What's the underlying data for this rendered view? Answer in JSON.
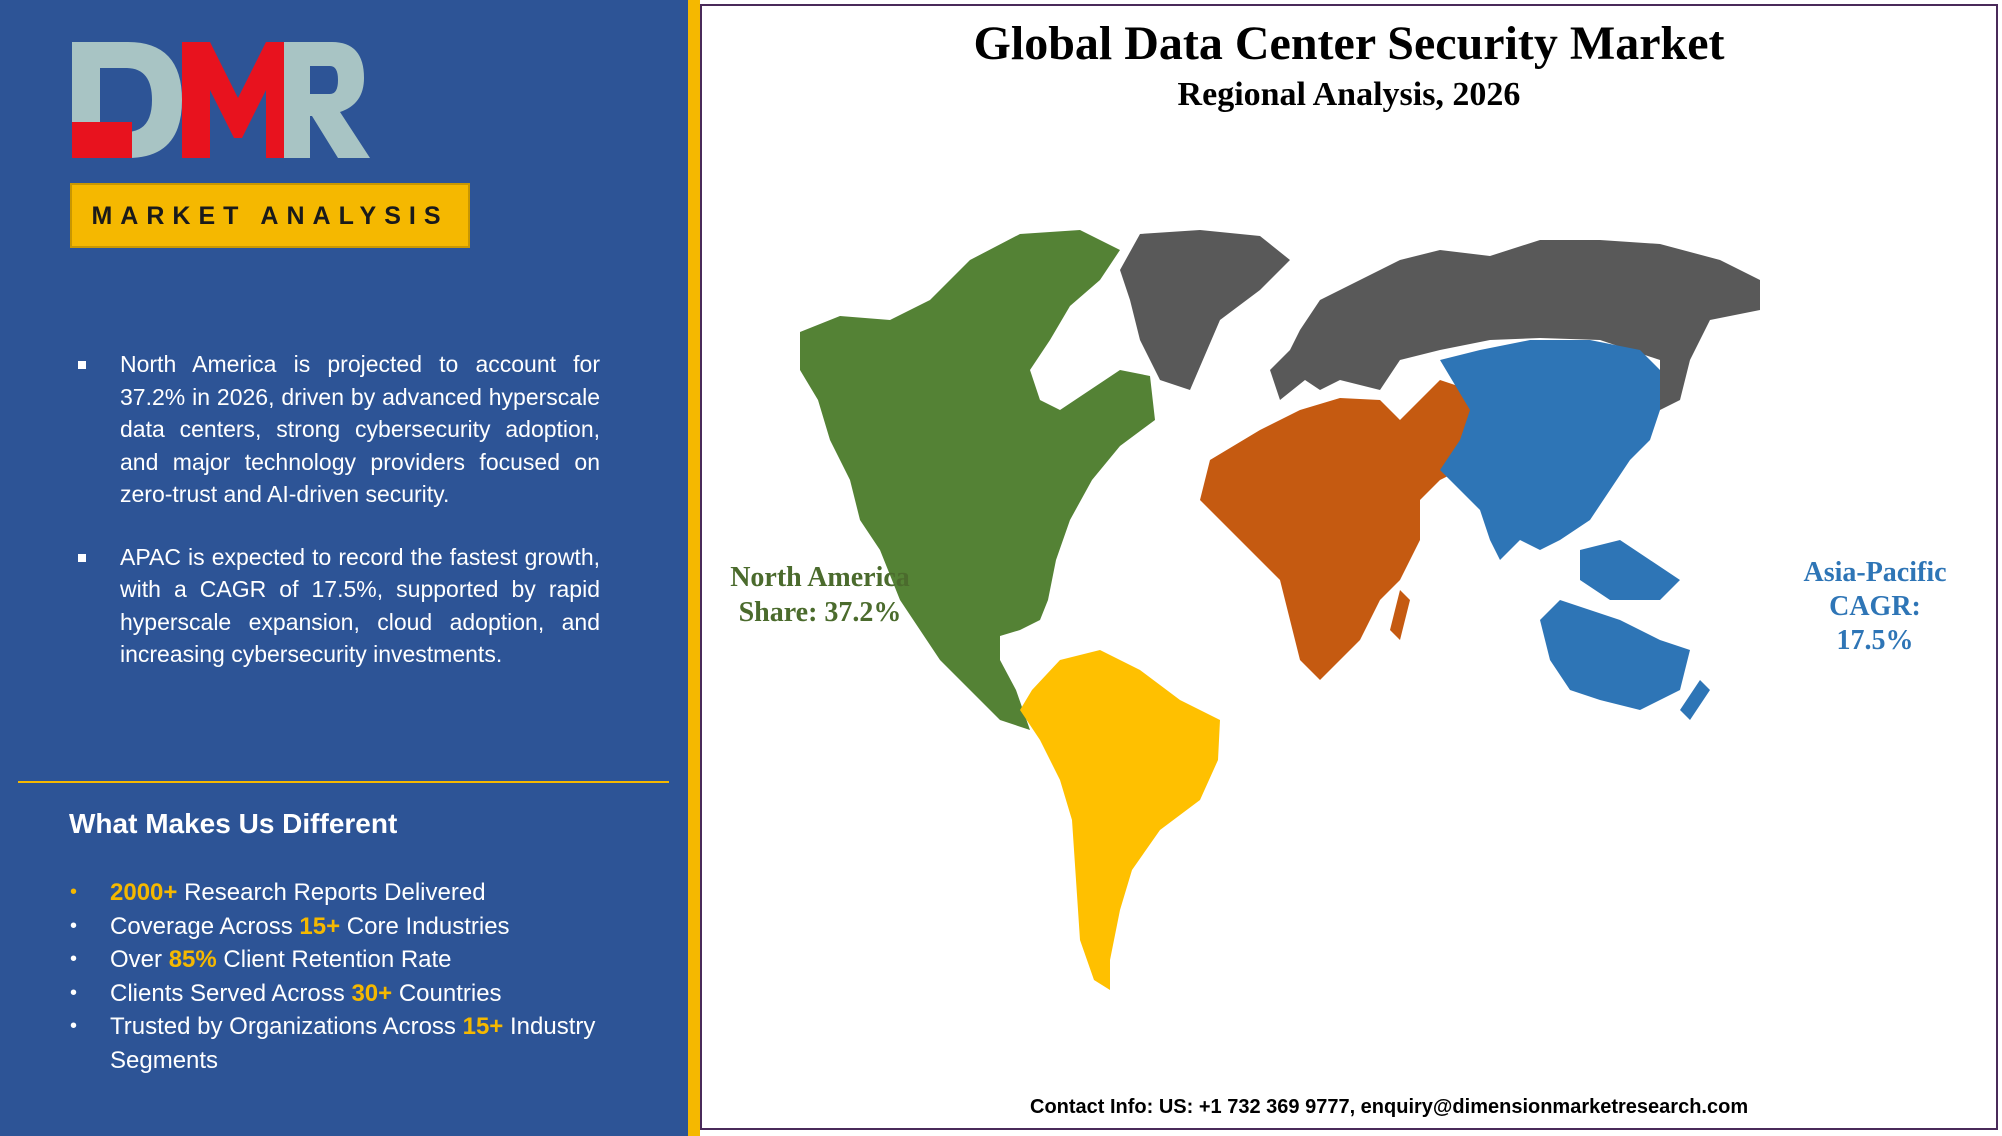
{
  "brand": {
    "logo_text": "DMR",
    "badge": "MARKET ANALYSIS",
    "colors": {
      "panel": "#2d5496",
      "gold": "#f5b800",
      "logo_red": "#e8121e",
      "logo_grey": "#a8c4c4"
    }
  },
  "insights": [
    {
      "text": "North America is projected to account for 37.2% in 2026, driven by advanced hyperscale data centers, strong cybersecurity adoption, and major technology providers focused on zero-trust and AI-driven security."
    },
    {
      "text": "APAC is expected to record the fastest growth, with a CAGR of 17.5%, supported by rapid hyperscale expansion, cloud adoption, and increasing cybersecurity investments."
    }
  ],
  "different": {
    "title": "What Makes Us Different",
    "items": [
      {
        "highlight": "2000+",
        "pre": "",
        "post": " Research Reports Delivered"
      },
      {
        "pre": "Coverage Across ",
        "highlight": "15+",
        "post": " Core Industries"
      },
      {
        "pre": "Over ",
        "highlight": "85%",
        "post": " Client Retention Rate"
      },
      {
        "pre": "Clients Served Across ",
        "highlight": "30+",
        "post": " Countries"
      },
      {
        "pre": "Trusted by Organizations Across ",
        "highlight": "15+",
        "post": " Industry Segments"
      }
    ]
  },
  "map": {
    "title": "Global Data Center Security Market",
    "subtitle": "Regional Analysis, 2026",
    "regions": [
      {
        "name": "North America",
        "color": "#548235"
      },
      {
        "name": "South America",
        "color": "#ffc000"
      },
      {
        "name": "Europe & Russia",
        "color": "#595959"
      },
      {
        "name": "Middle East & Africa",
        "color": "#c55a11"
      },
      {
        "name": "Asia-Pacific",
        "color": "#2e75b6"
      }
    ],
    "na_label": {
      "line1": "North America",
      "line2": "Share: 37.2%"
    },
    "ap_label": {
      "line1": "Asia-Pacific",
      "line2": "CAGR:",
      "line3": "17.5%"
    }
  },
  "contact": "Contact Info: US: +1 732 369 9777, enquiry@dimensionmarketresearch.com"
}
